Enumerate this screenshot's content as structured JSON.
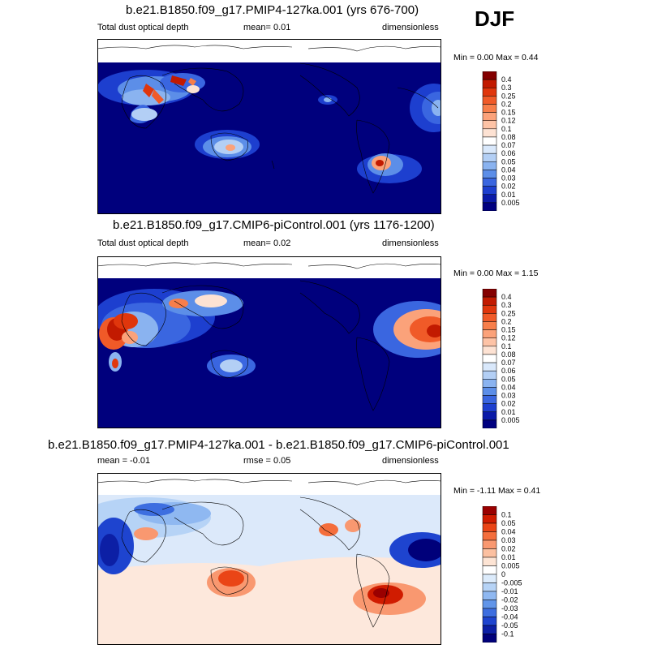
{
  "season": "DJF",
  "panels": [
    {
      "title": "b.e21.B1850.f09_g17.PMIP4-127ka.001 (yrs 676-700)",
      "left_label": "Total dust optical depth",
      "center_label": "mean=  0.01",
      "right_label": "dimensionless",
      "minmax": "Min =  0.00 Max =  0.44",
      "colorbar_labels": [
        "0.4",
        "0.3",
        "0.25",
        "0.2",
        "0.15",
        "0.12",
        "0.1",
        "0.08",
        "0.07",
        "0.06",
        "0.05",
        "0.04",
        "0.03",
        "0.02",
        "0.01",
        "0.005"
      ]
    },
    {
      "title": "b.e21.B1850.f09_g17.CMIP6-piControl.001 (yrs 1176-1200)",
      "left_label": "Total dust optical depth",
      "center_label": "mean=  0.02",
      "right_label": "dimensionless",
      "minmax": "Min =  0.00 Max =  1.15",
      "colorbar_labels": [
        "0.4",
        "0.3",
        "0.25",
        "0.2",
        "0.15",
        "0.12",
        "0.1",
        "0.08",
        "0.07",
        "0.06",
        "0.05",
        "0.04",
        "0.03",
        "0.02",
        "0.01",
        "0.005"
      ]
    },
    {
      "title": "b.e21.B1850.f09_g17.PMIP4-127ka.001 - b.e21.B1850.f09_g17.CMIP6-piControl.001",
      "left_label": "mean =  -0.01",
      "center_label": "rmse =  0.05",
      "right_label": "dimensionless",
      "minmax": "Min =  -1.11 Max =  0.41",
      "colorbar_labels": [
        "0.1",
        "0.05",
        "0.04",
        "0.03",
        "0.02",
        "0.01",
        "0.005",
        "0",
        "-0.005",
        "-0.01",
        "-0.02",
        "-0.03",
        "-0.04",
        "-0.05",
        "-0.1"
      ]
    }
  ],
  "colors": {
    "seq": [
      "#840000",
      "#c21a00",
      "#e0360c",
      "#f05a28",
      "#f77e4a",
      "#fba27a",
      "#fdc3a6",
      "#fde2d3",
      "#ffffff",
      "#d9e8fb",
      "#b3cff5",
      "#8ab3f0",
      "#5c8ee8",
      "#3a66e0",
      "#1d3fcf",
      "#0a1aa8",
      "#000080"
    ],
    "diff": [
      "#9a0000",
      "#d01c00",
      "#ea4516",
      "#f46e3c",
      "#f99870",
      "#fcc0a0",
      "#fde4d4",
      "#ffffff",
      "#dcebfb",
      "#b6d3f6",
      "#8fb8f1",
      "#6195e9",
      "#3d6ee0",
      "#1e44cf",
      "#0c1fa5",
      "#00007a"
    ],
    "ocean_dark": "#00007d",
    "ocean_diff_bg": "#fde8dc",
    "diff_band": "#dce9fa",
    "coast": "#000000"
  }
}
